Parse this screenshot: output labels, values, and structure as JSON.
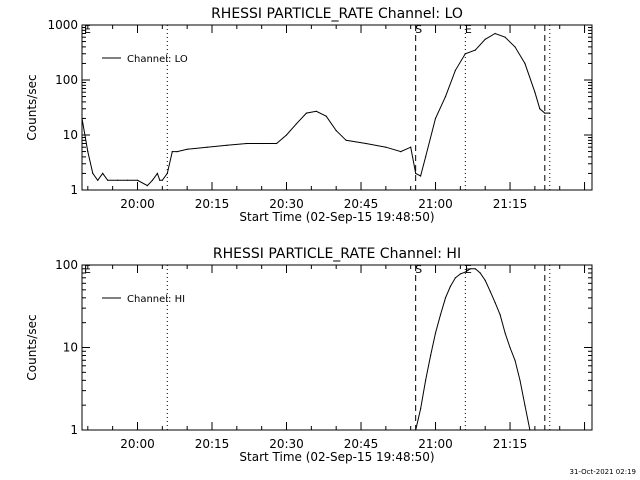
{
  "stamp": "31-Oct-2021 02:19",
  "chart_data": [
    {
      "type": "line",
      "title": "RHESSI PARTICLE_RATE Channel: LO",
      "xlabel": "Start Time (02-Sep-15 19:48:50)",
      "ylabel": "Counts/sec",
      "yscale": "log",
      "ylim": [
        1,
        1000
      ],
      "xlim_minutes": [
        1188.83,
        1291.5
      ],
      "x_tick_labels": [
        "20:00",
        "20:15",
        "20:30",
        "20:45",
        "21:00",
        "21:15"
      ],
      "y_tick_labels": [
        "1",
        "10",
        "100",
        "1000"
      ],
      "legend": {
        "position": "top-left",
        "entries": [
          "Channel: LO"
        ]
      },
      "series": [
        {
          "name": "Channel: LO",
          "x": [
            "19:48:50",
            "19:50",
            "19:51",
            "19:52",
            "19:53",
            "19:54",
            "19:56",
            "19:58",
            "20:00",
            "20:02",
            "20:03",
            "20:04",
            "20:04:30",
            "20:05",
            "20:06",
            "20:07",
            "20:08",
            "20:10",
            "20:14",
            "20:18",
            "20:22",
            "20:25",
            "20:28",
            "20:30",
            "20:32",
            "20:34",
            "20:36",
            "20:38",
            "20:40",
            "20:42",
            "20:46",
            "20:50",
            "20:53",
            "20:55",
            "20:56",
            "20:57",
            "20:58",
            "21:00",
            "21:02",
            "21:04",
            "21:06",
            "21:08",
            "21:10",
            "21:12",
            "21:14",
            "21:16",
            "21:18",
            "21:20",
            "21:21",
            "21:22",
            "21:23"
          ],
          "y": [
            20,
            5,
            2,
            1.5,
            2,
            1.5,
            1.5,
            1.5,
            1.5,
            1.2,
            1.5,
            2,
            1.5,
            1.5,
            2,
            5,
            5,
            5.5,
            6,
            6.5,
            7,
            7,
            7,
            10,
            16,
            25,
            27,
            22,
            12,
            8,
            7,
            6,
            5,
            6,
            2,
            1.8,
            4,
            20,
            50,
            150,
            300,
            350,
            550,
            700,
            600,
            400,
            200,
            60,
            30,
            25,
            25
          ]
        }
      ],
      "markers": [
        {
          "x": "20:06",
          "label": "",
          "style": "dotted"
        },
        {
          "x": "20:56",
          "label": "S",
          "style": "dashed"
        },
        {
          "x": "21:06",
          "label": "E",
          "style": "dotted"
        },
        {
          "x": "21:22",
          "label": "",
          "style": "dashed"
        },
        {
          "x": "21:23",
          "label": "",
          "style": "dotted"
        }
      ],
      "corner_label": "E"
    },
    {
      "type": "line",
      "title": "RHESSI PARTICLE_RATE Channel: HI",
      "xlabel": "Start Time (02-Sep-15 19:48:50)",
      "ylabel": "Counts/sec",
      "yscale": "log",
      "ylim": [
        1,
        100
      ],
      "xlim_minutes": [
        1188.83,
        1291.5
      ],
      "x_tick_labels": [
        "20:00",
        "20:15",
        "20:30",
        "20:45",
        "21:00",
        "21:15"
      ],
      "y_tick_labels": [
        "1",
        "10",
        "100"
      ],
      "legend": {
        "position": "top-left",
        "entries": [
          "Channel: HI"
        ]
      },
      "series": [
        {
          "name": "Channel: HI",
          "x": [
            "20:56",
            "20:57",
            "20:58",
            "20:59",
            "21:00",
            "21:01",
            "21:02",
            "21:03",
            "21:04",
            "21:05",
            "21:06",
            "21:07",
            "21:08",
            "21:09",
            "21:10",
            "21:11",
            "21:12",
            "21:13",
            "21:14",
            "21:15",
            "21:16",
            "21:17",
            "21:18",
            "21:19"
          ],
          "y": [
            1,
            1.8,
            4,
            8,
            15,
            25,
            40,
            55,
            70,
            78,
            82,
            90,
            90,
            80,
            65,
            48,
            35,
            25,
            15,
            10,
            7,
            4,
            2,
            1
          ]
        }
      ],
      "markers": [
        {
          "x": "20:06",
          "label": "",
          "style": "dotted"
        },
        {
          "x": "20:56",
          "label": "S",
          "style": "dashed"
        },
        {
          "x": "21:06",
          "label": "E",
          "style": "dotted"
        },
        {
          "x": "21:22",
          "label": "",
          "style": "dashed"
        },
        {
          "x": "21:23",
          "label": "",
          "style": "dotted"
        }
      ],
      "corner_label": "E"
    }
  ]
}
